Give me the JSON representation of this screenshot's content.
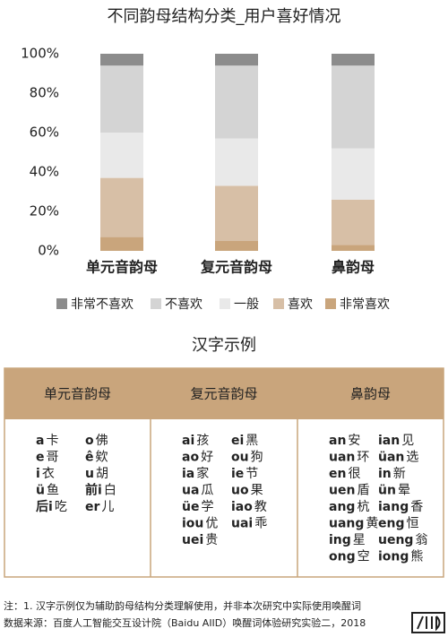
{
  "chart_data": {
    "type": "stacked_bar",
    "title": "不同韵母结构分类_用户喜好情况",
    "categories": [
      "单元音韵母",
      "复元音韵母",
      "鼻韵母"
    ],
    "series": [
      {
        "name": "非常不喜欢",
        "color": "#8c8c8c",
        "values": [
          6,
          6,
          6
        ]
      },
      {
        "name": "不喜欢",
        "color": "#d4d4d4",
        "values": [
          34,
          37,
          42
        ]
      },
      {
        "name": "一般",
        "color": "#e9e9e9",
        "values": [
          23,
          24,
          26
        ]
      },
      {
        "name": "喜欢",
        "color": "#d7bfa6",
        "values": [
          30,
          28,
          23
        ]
      },
      {
        "name": "非常喜欢",
        "color": "#c9a57c",
        "values": [
          7,
          5,
          3
        ]
      }
    ],
    "ylim": [
      0,
      100
    ],
    "yticks": [
      {
        "value": 0,
        "label": "0%"
      },
      {
        "value": 20,
        "label": "20%"
      },
      {
        "value": 40,
        "label": "40%"
      },
      {
        "value": 60,
        "label": "60%"
      },
      {
        "value": 80,
        "label": "80%"
      },
      {
        "value": 100,
        "label": "100%"
      }
    ],
    "grid": false,
    "legend": "bottom"
  },
  "table": {
    "title": "汉字示例",
    "columns": [
      {
        "header": "单元音韵母",
        "groups": [
          [
            [
              "a",
              "卡"
            ],
            [
              "e",
              "哥"
            ],
            [
              "i",
              "衣"
            ],
            [
              "ü",
              "鱼"
            ],
            [
              "后i",
              "吃"
            ]
          ],
          [
            [
              "o",
              "佛"
            ],
            [
              "ê",
              "欸"
            ],
            [
              "u",
              "胡"
            ],
            [
              "前i",
              "白"
            ],
            [
              "er",
              "儿"
            ]
          ]
        ]
      },
      {
        "header": "复元音韵母",
        "groups": [
          [
            [
              "ai",
              "孩"
            ],
            [
              "ao",
              "好"
            ],
            [
              "ia",
              "家"
            ],
            [
              "ua",
              "瓜"
            ],
            [
              "üe",
              "学"
            ],
            [
              "iou",
              "优"
            ],
            [
              "uei",
              "贵"
            ]
          ],
          [
            [
              "ei",
              "黑"
            ],
            [
              "ou",
              "狗"
            ],
            [
              "ie",
              "节"
            ],
            [
              "uo",
              "果"
            ],
            [
              "iao",
              "教"
            ],
            [
              "uai",
              "乖"
            ]
          ]
        ]
      },
      {
        "header": "鼻韵母",
        "groups": [
          [
            [
              "an",
              "安"
            ],
            [
              "uan",
              "环"
            ],
            [
              "en",
              "很"
            ],
            [
              "uen",
              "盾"
            ],
            [
              "ang",
              "杭"
            ],
            [
              "uang",
              "黄"
            ],
            [
              "ing",
              "星"
            ],
            [
              "ong",
              "空"
            ]
          ],
          [
            [
              "ian",
              "见"
            ],
            [
              "üan",
              "选"
            ],
            [
              "in",
              "新"
            ],
            [
              "ün",
              "晕"
            ],
            [
              "iang",
              "香"
            ],
            [
              "eng",
              "恒"
            ],
            [
              "ueng",
              "翁"
            ],
            [
              "iong",
              "熊"
            ]
          ]
        ]
      }
    ]
  },
  "footer": {
    "note": "注：1. 汉字示例仅为辅助韵母结构分类理解使用，并非本次研究中实际使用唤醒词",
    "source": "数据来源：百度人工智能交互设计院（Baidu AIID）唤醒词体验研究实验二，2018"
  }
}
